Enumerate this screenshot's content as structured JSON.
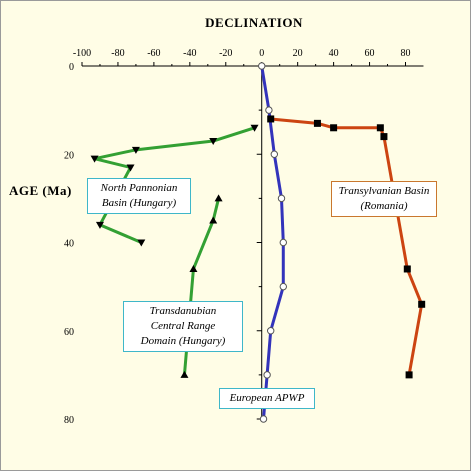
{
  "chart_data": {
    "type": "line",
    "title": "DECLINATION",
    "ylabel": "AGE (Ma)",
    "xlim": [
      -100,
      90
    ],
    "ylim": [
      0,
      80
    ],
    "y_inverted": true,
    "x_ticks": [
      -100,
      -80,
      -60,
      -40,
      -20,
      0,
      20,
      40,
      60,
      80
    ],
    "y_ticks": [
      0,
      20,
      40,
      60,
      80
    ],
    "x_tick_labels": [
      "-100",
      "-80",
      "-60",
      "-40",
      "-20",
      "0",
      "20",
      "40",
      "60",
      "80"
    ],
    "y_tick_labels": [
      "0",
      "20",
      "40",
      "60",
      "80"
    ],
    "grid": false,
    "series": [
      {
        "name": "European APWP",
        "color": "#3333bb",
        "marker": "circle-open",
        "points": [
          [
            0,
            0
          ],
          [
            4,
            10
          ],
          [
            7,
            20
          ],
          [
            11,
            30
          ],
          [
            12,
            40
          ],
          [
            12,
            50
          ],
          [
            5,
            60
          ],
          [
            3,
            70
          ],
          [
            1,
            80
          ]
        ]
      },
      {
        "name": "Transylvanian Basin (Romania)",
        "color": "#cc4411",
        "marker": "square",
        "points": [
          [
            5,
            12
          ],
          [
            31,
            13
          ],
          [
            40,
            14
          ],
          [
            66,
            14
          ],
          [
            68,
            16
          ],
          [
            81,
            46
          ],
          [
            89,
            54
          ],
          [
            82,
            70
          ]
        ]
      },
      {
        "name": "North Pannonian Basin (Hungary)",
        "color": "#33a033",
        "marker": "triangle-down",
        "points": [
          [
            -4,
            14
          ],
          [
            -27,
            17
          ],
          [
            -70,
            19
          ],
          [
            -93,
            21
          ],
          [
            -73,
            23
          ],
          [
            -90,
            36
          ],
          [
            -67,
            40
          ]
        ]
      },
      {
        "name": "Transdanubian Central Range Domain (Hungary)",
        "color": "#33a033",
        "marker": "triangle-up",
        "points": [
          [
            -24,
            30
          ],
          [
            -27,
            35
          ],
          [
            -38,
            46
          ],
          [
            -43,
            70
          ]
        ]
      }
    ],
    "annotations": {
      "north_pannonian": [
        "North Pannonian",
        "Basin (Hungary)"
      ],
      "transdanubian": [
        "Transdanubian",
        "Central Range",
        "Domain (Hungary)"
      ],
      "transylvanian": [
        "Transylvanian Basin",
        "(Romania)"
      ],
      "european": [
        "European APWP"
      ]
    }
  }
}
